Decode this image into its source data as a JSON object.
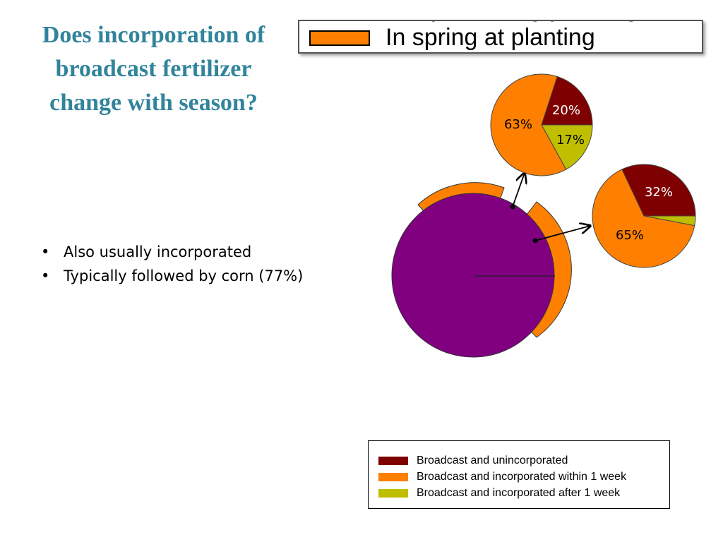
{
  "title": "Does incorporation of broadcast fertilizer change with season?",
  "bullets": [
    "Also usually incorporated",
    "Typically followed by corn (77%)"
  ],
  "top_legend": {
    "partial_text": "In fall preceding planting",
    "label": "In spring at planting",
    "swatch_color": "#ff8000"
  },
  "colors": {
    "unincorporated": "#7f0000",
    "within_1_week": "#ff8000",
    "after_1_week": "#bfbf00",
    "main_pie": "#800080"
  },
  "chart_data": [
    {
      "type": "pie",
      "series": [
        "Broadcast and unincorporated",
        "Broadcast and incorporated within 1 week",
        "Broadcast and incorporated after 1 week"
      ],
      "values": [
        20,
        63,
        17
      ],
      "labels": [
        "20%",
        "63%",
        "17%"
      ]
    },
    {
      "type": "pie",
      "series": [
        "Broadcast and unincorporated",
        "Broadcast and incorporated within 1 week",
        "Broadcast and incorporated after 1 week"
      ],
      "values": [
        32,
        65,
        3
      ],
      "labels": [
        "32%",
        "65%",
        ""
      ]
    }
  ],
  "legend": {
    "items": [
      {
        "label": "Broadcast and unincorporated",
        "color": "#7f0000"
      },
      {
        "label": "Broadcast and incorporated within 1 week",
        "color": "#ff8000"
      },
      {
        "label": "Broadcast and incorporated after 1 week",
        "color": "#bfbf00"
      }
    ]
  }
}
